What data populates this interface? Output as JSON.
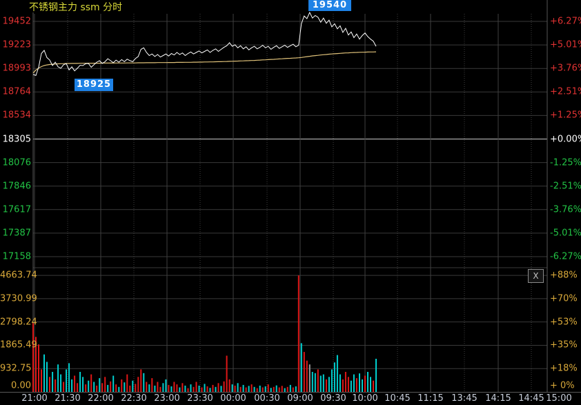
{
  "window": {
    "title": "不锈钢主力 ssm 分时",
    "close_button": "X"
  },
  "colors": {
    "up": "#e03232",
    "down": "#22c245",
    "neutral": "#ffffff",
    "volume_axis": "#d9a93a",
    "title": "#d8d838",
    "price_line": "#ffffff",
    "avg_line": "#e0c27a",
    "vol_up": "#e01717",
    "vol_down": "#00d0d0",
    "vol_flat": "#999999",
    "tag_bg": "#1e82e6",
    "grid": "#3a3a3a",
    "zero_line": "#c8c8c8",
    "time_label": "#c9cfdb"
  },
  "chart_data": {
    "type": "line",
    "title": "不锈钢主力 ssm 分时",
    "instrument": "不锈钢主力",
    "symbol": "ssm",
    "period": "分时",
    "base_price": 18305,
    "high_tag": "19540",
    "low_tag": "18925",
    "price_axis": {
      "left_labels": [
        "19452",
        "19223",
        "18993",
        "18764",
        "18534",
        "18305",
        "18076",
        "17846",
        "17617",
        "17387",
        "17158"
      ],
      "right_labels": [
        "+6.27%",
        "+5.01%",
        "+3.76%",
        "+2.51%",
        "+1.25%",
        "+0.00%",
        "-1.25%",
        "-2.51%",
        "-3.76%",
        "-5.01%",
        "-6.27%"
      ],
      "tick_colors": "uuuuunddddd",
      "pct_limits": [
        -6.27,
        6.27
      ]
    },
    "volume_axis": {
      "max": 4663.74,
      "left_labels": [
        "4663.74",
        "3730.99",
        "2798.24",
        "1865.49",
        "932.75",
        "0.00"
      ],
      "right_labels": [
        "+88%",
        "+70%",
        "+53%",
        "+35%",
        "+18%",
        "+ 0%"
      ]
    },
    "time_axis": {
      "labels": [
        "21:00",
        "21:30",
        "22:00",
        "22:30",
        "23:00",
        "23:30",
        "00:00",
        "00:30",
        "09:00",
        "09:30",
        "10:00",
        "10:45",
        "11:15",
        "13:45",
        "14:15",
        "14:45",
        "15:00"
      ],
      "positions": [
        50,
        98,
        146,
        194,
        242,
        290,
        338,
        387,
        435,
        483,
        529,
        576,
        624,
        673,
        722,
        770,
        810
      ]
    },
    "series": {
      "price": [
        18935,
        18925,
        19005,
        19140,
        19170,
        19100,
        19076,
        19022,
        19055,
        19010,
        18995,
        19030,
        19040,
        18980,
        19010,
        18970,
        18995,
        19025,
        19022,
        19040,
        19042,
        19005,
        19030,
        19055,
        19069,
        19042,
        19060,
        19089,
        19070,
        19050,
        19075,
        19055,
        19080,
        19060,
        19085,
        19070,
        19060,
        19090,
        19110,
        19180,
        19195,
        19150,
        19120,
        19135,
        19110,
        19130,
        19105,
        19120,
        19135,
        19115,
        19140,
        19125,
        19150,
        19130,
        19145,
        19120,
        19140,
        19155,
        19135,
        19150,
        19165,
        19145,
        19160,
        19175,
        19150,
        19170,
        19185,
        19160,
        19180,
        19200,
        19215,
        19245,
        19210,
        19225,
        19195,
        19215,
        19185,
        19205,
        19175,
        19195,
        19210,
        19185,
        19200,
        19220,
        19195,
        19210,
        19180,
        19200,
        19215,
        19190,
        19205,
        19220,
        19200,
        19215,
        19230,
        19205,
        19220,
        19430,
        19506,
        19480,
        19540,
        19485,
        19510,
        19493,
        19445,
        19485,
        19435,
        19465,
        19400,
        19430,
        19380,
        19410,
        19345,
        19385,
        19320,
        19350,
        19295,
        19330,
        19280,
        19315,
        19340,
        19305,
        19280,
        19260,
        19210
      ],
      "avg": [
        18950,
        18978,
        18998,
        19012,
        19022,
        19028,
        19032,
        19035,
        19037,
        19039,
        19040,
        19041,
        19042,
        19042,
        19043,
        19043,
        19043,
        19044,
        19044,
        19044,
        19045,
        19045,
        19045,
        19045,
        19045,
        19046,
        19046,
        19046,
        19046,
        19046,
        19047,
        19047,
        19047,
        19047,
        19048,
        19048,
        19048,
        19048,
        19049,
        19049,
        19049,
        19050,
        19050,
        19050,
        19050,
        19051,
        19051,
        19051,
        19051,
        19052,
        19052,
        19052,
        19053,
        19053,
        19053,
        19054,
        19054,
        19054,
        19055,
        19055,
        19056,
        19056,
        19057,
        19057,
        19058,
        19058,
        19059,
        19060,
        19060,
        19061,
        19062,
        19063,
        19064,
        19065,
        19066,
        19067,
        19068,
        19069,
        19070,
        19071,
        19072,
        19074,
        19075,
        19077,
        19078,
        19080,
        19082,
        19083,
        19085,
        19087,
        19088,
        19090,
        19092,
        19093,
        19095,
        19096,
        19098,
        19101,
        19105,
        19109,
        19112,
        19116,
        19119,
        19122,
        19125,
        19128,
        19130,
        19133,
        19135,
        19137,
        19139,
        19141,
        19143,
        19145,
        19146,
        19148,
        19149,
        19150,
        19151,
        19152,
        19153,
        19154,
        19155,
        19155,
        19156
      ],
      "volume": [
        2750,
        2200,
        1900,
        900,
        1500,
        1200,
        600,
        800,
        500,
        1100,
        700,
        400,
        900,
        1150,
        500,
        650,
        350,
        800,
        600,
        300,
        450,
        700,
        400,
        250,
        550,
        350,
        600,
        280,
        420,
        650,
        300,
        200,
        500,
        380,
        700,
        250,
        450,
        320,
        600,
        900,
        750,
        400,
        300,
        550,
        250,
        400,
        200,
        350,
        500,
        280,
        220,
        400,
        300,
        180,
        350,
        250,
        150,
        300,
        200,
        400,
        250,
        180,
        320,
        220,
        160,
        280,
        200,
        350,
        240,
        420,
        1450,
        500,
        300,
        250,
        350,
        200,
        280,
        180,
        240,
        300,
        200,
        150,
        250,
        180,
        220,
        300,
        160,
        200,
        260,
        180,
        240,
        150,
        200,
        280,
        180,
        220,
        4660,
        1950,
        1600,
        1250,
        1100,
        800,
        750,
        900,
        650,
        700,
        500,
        600,
        900,
        1180,
        1475,
        700,
        500,
        800,
        600,
        450,
        700,
        550,
        740,
        500,
        650,
        800,
        600,
        450,
        1325
      ],
      "volume_dir": "rrrrccrcrccrcccrrccrcrcrcrrcrcrcrcrrcrrrcrcrcrrccrcrrcrcrcrrcrcrcrcrcrrrcrcrcrcrcrcrcrcrcrrcrcrcrcrrgccrccrcccccrrrccrccrccrc"
    }
  }
}
